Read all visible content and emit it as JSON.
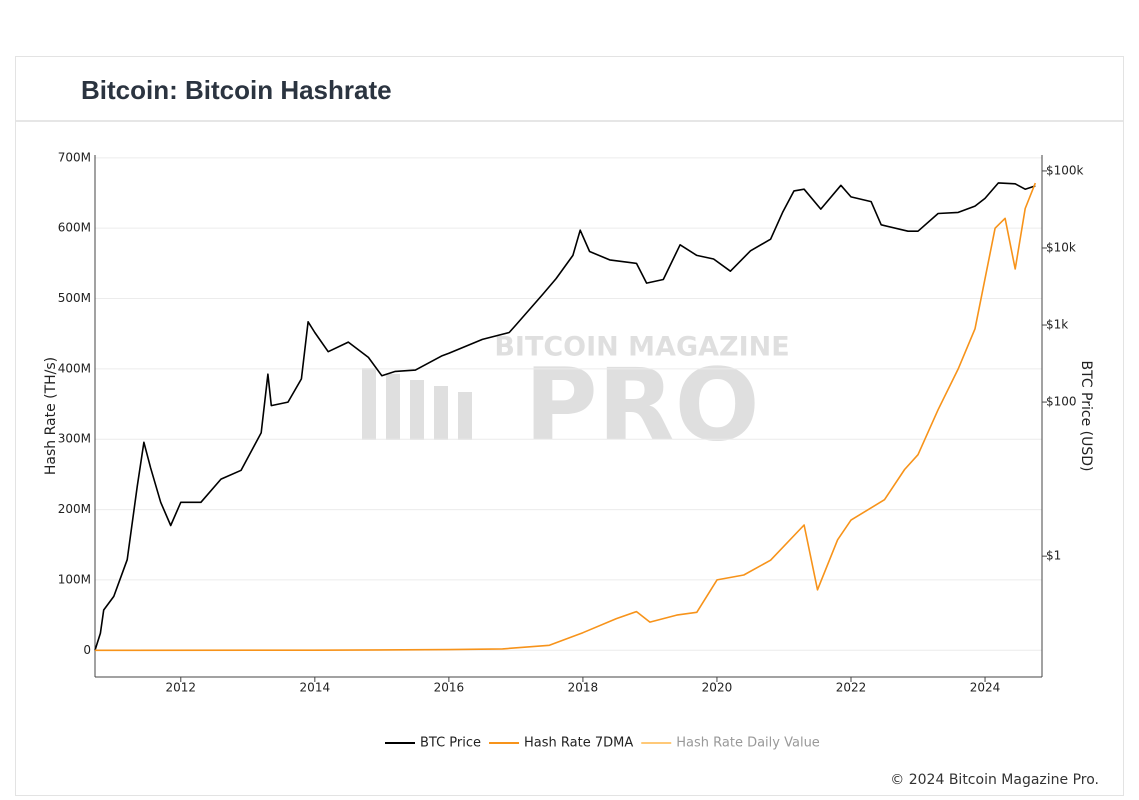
{
  "copyright": "© 2024 Bitcoin Magazine Pro.",
  "chart_data": {
    "type": "line",
    "title": "Bitcoin: Bitcoin Hashrate",
    "watermark": {
      "top": "BITCOIN MAGAZINE",
      "main": "PRO"
    },
    "y_label": "Hash Rate (TH/s)",
    "y2_label": "BTC Price (USD)",
    "xlim": [
      2010.72,
      2024.85
    ],
    "xticks": [
      2012,
      2014,
      2016,
      2018,
      2020,
      2022,
      2024
    ],
    "ylim": [
      -38000000,
      704000000
    ],
    "yticks": [
      0,
      {
        "value": 100000000,
        "label": "100M"
      },
      {
        "value": 200000000,
        "label": "200M"
      },
      {
        "value": 300000000,
        "label": "300M"
      },
      {
        "value": 400000000,
        "label": "400M"
      },
      {
        "value": 500000000,
        "label": "500M"
      },
      {
        "value": 600000000,
        "label": "600M"
      },
      {
        "value": 700000000,
        "label": "700M"
      }
    ],
    "y2lim": [
      0.027,
      161000
    ],
    "y2scale": "log",
    "y2ticks": [
      {
        "value": 1,
        "label": "$1"
      },
      {
        "value": 100,
        "label": "$100"
      },
      {
        "value": 1000,
        "label": "$1k"
      },
      {
        "value": 10000,
        "label": "$10k"
      },
      {
        "value": 100000,
        "label": "$100k"
      }
    ],
    "grid": true,
    "legend": "bottom",
    "series": [
      {
        "name": "BTC Price",
        "color": "#000000",
        "axis": "y2",
        "x": [
          2010.72,
          2010.8,
          2010.85,
          2011.0,
          2011.2,
          2011.35,
          2011.45,
          2011.55,
          2011.7,
          2011.85,
          2012.0,
          2012.3,
          2012.6,
          2012.9,
          2013.2,
          2013.3,
          2013.35,
          2013.6,
          2013.8,
          2013.9,
          2014.0,
          2014.2,
          2014.5,
          2014.8,
          2015.0,
          2015.2,
          2015.5,
          2015.9,
          2016.0,
          2016.5,
          2016.9,
          2017.0,
          2017.4,
          2017.6,
          2017.85,
          2017.96,
          2018.1,
          2018.4,
          2018.8,
          2018.95,
          2019.2,
          2019.45,
          2019.7,
          2019.95,
          2020.2,
          2020.5,
          2020.8,
          2020.98,
          2021.15,
          2021.3,
          2021.55,
          2021.85,
          2022.0,
          2022.3,
          2022.45,
          2022.85,
          2023.0,
          2023.3,
          2023.6,
          2023.85,
          2024.0,
          2024.2,
          2024.45,
          2024.6,
          2024.75
        ],
        "values": [
          0.06,
          0.1,
          0.2,
          0.3,
          0.9,
          8,
          30,
          14,
          5,
          2.5,
          5,
          5,
          10,
          13,
          40,
          230,
          90,
          100,
          200,
          1100,
          800,
          450,
          600,
          380,
          220,
          250,
          260,
          400,
          430,
          650,
          800,
          1000,
          2500,
          4000,
          8000,
          17000,
          9000,
          7000,
          6300,
          3500,
          3900,
          11000,
          8000,
          7200,
          5000,
          9200,
          13000,
          29000,
          55000,
          58000,
          32000,
          65000,
          46000,
          40000,
          20000,
          16500,
          16500,
          28000,
          29000,
          35000,
          44000,
          70000,
          68000,
          58000,
          64000
        ]
      },
      {
        "name": "Hash Rate 7DMA",
        "color": "#f7931a",
        "x": [
          2010.72,
          2014.0,
          2016.0,
          2016.8,
          2017.5,
          2018.0,
          2018.5,
          2018.8,
          2019.0,
          2019.4,
          2019.7,
          2020.0,
          2020.4,
          2020.8,
          2021.3,
          2021.5,
          2021.8,
          2022.0,
          2022.5,
          2022.8,
          2023.0,
          2023.3,
          2023.6,
          2023.85,
          2024.0,
          2024.15,
          2024.3,
          2024.45,
          2024.6,
          2024.75
        ],
        "values": [
          0,
          100000,
          1000000,
          2000000,
          7000000,
          25000000,
          45000000,
          55000000,
          40000000,
          50000000,
          54000000,
          100000000,
          107000000,
          128000000,
          178000000,
          86000000,
          157000000,
          185000000,
          214000000,
          257000000,
          278000000,
          342000000,
          400000000,
          457000000,
          528000000,
          600000000,
          614000000,
          542000000,
          628000000,
          664000000
        ]
      },
      {
        "name": "Hash Rate Daily Value",
        "color": "#ffc978",
        "hidden": true
      }
    ]
  }
}
